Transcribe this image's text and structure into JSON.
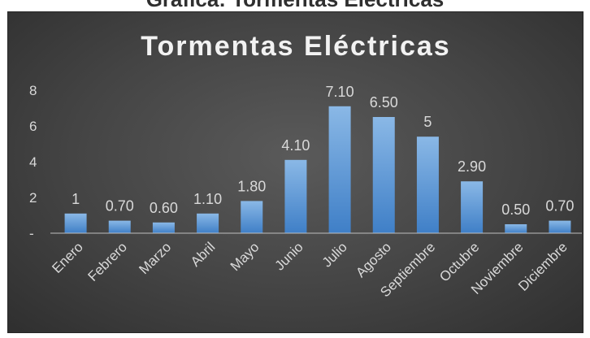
{
  "top_caption": "Gráfica: Tormentas Eléctricas",
  "chart_data": {
    "type": "bar",
    "title": "Tormentas Eléctricas",
    "xlabel": "",
    "ylabel": "",
    "categories": [
      "Enero",
      "Febrero",
      "Marzo",
      "Abril",
      "Mayo",
      "Junio",
      "Julio",
      "Agosto",
      "Septiembre",
      "Octubre",
      "Noviembre",
      "Diciembre"
    ],
    "values": [
      1.1,
      0.7,
      0.6,
      1.1,
      1.8,
      4.1,
      7.1,
      6.5,
      5.4,
      2.9,
      0.5,
      0.7
    ],
    "data_labels": [
      "1",
      "0.70",
      "0.60",
      "1.10",
      "1.80",
      "4.10",
      "7.10",
      "6.50",
      "5",
      "2.90",
      "0.50",
      "0.70"
    ],
    "yticks": [
      {
        "value": 0,
        "label": "-"
      },
      {
        "value": 2,
        "label": "2"
      },
      {
        "value": 4,
        "label": "4"
      },
      {
        "value": 6,
        "label": "6"
      },
      {
        "value": 8,
        "label": "8"
      }
    ],
    "ylim": [
      0,
      8
    ],
    "grid": false,
    "legend": "none",
    "colors": {
      "bar_top": "#8ab8e6",
      "bar_bottom": "#3f7fc7",
      "text": "#d9d9d9",
      "axis": "#bfbfbf"
    }
  }
}
